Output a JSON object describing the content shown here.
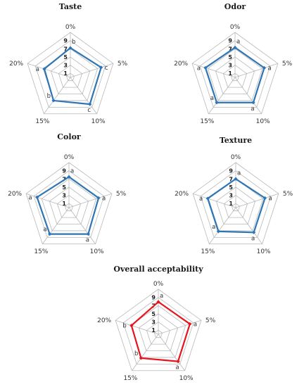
{
  "chart_data": [
    {
      "type": "radar",
      "title": "Taste",
      "categories": [
        "0%",
        "5%",
        "10%",
        "15%",
        "20%"
      ],
      "ticks": [
        "1",
        "3",
        "5",
        "7",
        "9"
      ],
      "rmax": 9,
      "values": [
        7.2,
        7.9,
        8.1,
        7.0,
        6.7
      ],
      "significance": [
        "b",
        "c",
        "c",
        "b",
        "a"
      ],
      "color": "#2e75b6"
    },
    {
      "type": "radar",
      "title": "Odor",
      "categories": [
        "0%",
        "5%",
        "10%",
        "15%",
        "20%"
      ],
      "ticks": [
        "1",
        "3",
        "5",
        "7",
        "9"
      ],
      "rmax": 9,
      "values": [
        7.3,
        7.5,
        7.6,
        7.6,
        7.6
      ],
      "significance": [
        "a",
        "a",
        "a",
        "a",
        "a"
      ],
      "color": "#2e75b6"
    },
    {
      "type": "radar",
      "title": "Color",
      "categories": [
        "0%",
        "5%",
        "10%",
        "15%",
        "20%"
      ],
      "ticks": [
        "1",
        "3",
        "5",
        "7",
        "9"
      ],
      "rmax": 9,
      "values": [
        7.5,
        7.6,
        8.0,
        8.0,
        8.2
      ],
      "significance": [
        "a",
        "a",
        "a",
        "a",
        "a"
      ],
      "color": "#2e75b6"
    },
    {
      "type": "radar",
      "title": "Texture",
      "categories": [
        "0%",
        "5%",
        "10%",
        "15%",
        "20%"
      ],
      "ticks": [
        "1",
        "3",
        "5",
        "7",
        "9"
      ],
      "rmax": 9,
      "values": [
        7.0,
        7.5,
        7.5,
        7.2,
        7.2
      ],
      "significance": [
        "a",
        "a",
        "a",
        "a",
        "a"
      ],
      "color": "#2e75b6"
    },
    {
      "type": "radar",
      "title": "Overall acceptability",
      "categories": [
        "0%",
        "5%",
        "10%",
        "15%",
        "20%"
      ],
      "ticks": [
        "1",
        "3",
        "5",
        "7",
        "9"
      ],
      "rmax": 9,
      "values": [
        7.9,
        8.1,
        8.2,
        7.2,
        6.9
      ],
      "significance": [
        "a",
        "a",
        "a",
        "b",
        "b"
      ],
      "color": "#e8141c"
    }
  ]
}
